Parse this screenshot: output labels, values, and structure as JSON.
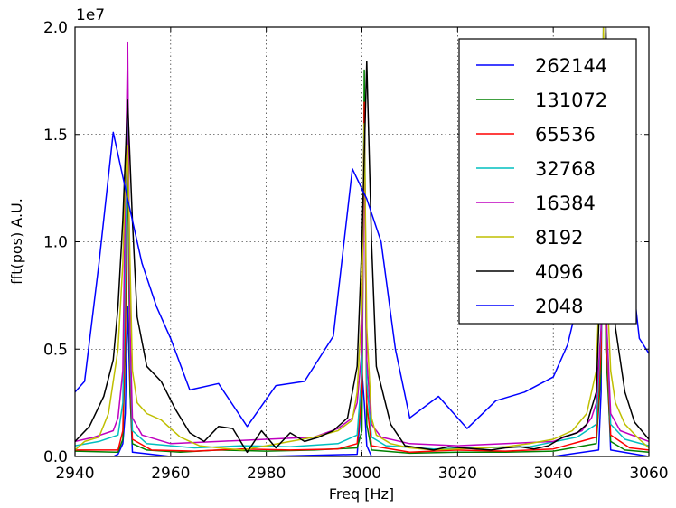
{
  "chart_data": {
    "type": "line",
    "title": "",
    "xlabel": "Freq [Hz]",
    "ylabel": "fft(pos) A.U.",
    "y_offset_label": "1e7",
    "xlim": [
      2940,
      3060
    ],
    "ylim": [
      0,
      20000000
    ],
    "xticks": [
      2940,
      2960,
      2980,
      3000,
      3020,
      3040,
      3060
    ],
    "xtick_labels": [
      "2940",
      "2960",
      "2980",
      "3000",
      "3020",
      "3040",
      "3060"
    ],
    "yticks": [
      0,
      5000000,
      10000000,
      15000000,
      20000000
    ],
    "ytick_labels": [
      "0.0",
      "0.5",
      "1.0",
      "1.5",
      "2.0"
    ],
    "grid": true,
    "legend_position": "top-right",
    "series": [
      {
        "name": "262144",
        "color": "#0000ff",
        "x": [
          2940,
          2948,
          2949,
          2950,
          2950.5,
          2951,
          2951.5,
          2952,
          2960,
          2980,
          2999,
          2999.5,
          3000,
          3000.5,
          3001,
          3002,
          3020,
          3040,
          3049.5,
          3050,
          3050.5,
          3051,
          3052,
          3060
        ],
        "y": [
          0,
          0,
          100000,
          600000,
          2000000,
          7000000,
          3000000,
          200000,
          0,
          0,
          100000,
          1500000,
          4000000,
          2500000,
          500000,
          0,
          0,
          0,
          300000,
          3000000,
          20000000,
          6000000,
          300000,
          0
        ]
      },
      {
        "name": "131072",
        "color": "#008000",
        "x": [
          2940,
          2949,
          2950,
          2950.5,
          2951,
          2951.5,
          2952,
          2955,
          2962,
          2970,
          2980,
          2990,
          2999,
          3000,
          3000.5,
          3001,
          3002,
          3010,
          3020,
          3030,
          3040,
          3049,
          3050,
          3050.5,
          3051,
          3052,
          3055,
          3060
        ],
        "y": [
          250000,
          200000,
          800000,
          5000000,
          14000000,
          3000000,
          600000,
          300000,
          200000,
          300000,
          250000,
          300000,
          400000,
          1200000,
          18000000,
          1500000,
          300000,
          150000,
          200000,
          200000,
          250000,
          600000,
          4000000,
          20000000,
          5000000,
          700000,
          300000,
          200000
        ]
      },
      {
        "name": "65536",
        "color": "#ff0000",
        "x": [
          2940,
          2949,
          2950,
          2950.5,
          2951,
          2951.5,
          2952,
          2956,
          2965,
          2975,
          2985,
          2995,
          2999,
          3000,
          3000.5,
          3001,
          3002,
          3010,
          3020,
          3030,
          3040,
          3049,
          3050,
          3050.5,
          3051,
          3052,
          3056,
          3060
        ],
        "y": [
          300000,
          300000,
          1200000,
          6000000,
          17500000,
          4000000,
          800000,
          300000,
          250000,
          350000,
          300000,
          350000,
          600000,
          3000000,
          16500000,
          2500000,
          500000,
          200000,
          300000,
          250000,
          350000,
          900000,
          5000000,
          19000000,
          6000000,
          1000000,
          400000,
          300000
        ]
      },
      {
        "name": "32768",
        "color": "#00bfbf",
        "x": [
          2940,
          2945,
          2949,
          2950,
          2950.5,
          2951,
          2951.5,
          2952,
          2955,
          2965,
          2975,
          2985,
          2995,
          2999,
          3000,
          3000.5,
          3001,
          3002,
          3005,
          3015,
          3025,
          3035,
          3045,
          3049,
          3050,
          3050.5,
          3051,
          3052,
          3055,
          3060
        ],
        "y": [
          500000,
          700000,
          1000000,
          2500000,
          9000000,
          18000000,
          5000000,
          1200000,
          600000,
          400000,
          500000,
          450000,
          600000,
          1000000,
          4000000,
          15500000,
          3500000,
          900000,
          500000,
          350000,
          400000,
          450000,
          900000,
          1500000,
          6000000,
          18500000,
          7000000,
          1500000,
          800000,
          500000
        ]
      },
      {
        "name": "16384",
        "color": "#bf00bf",
        "x": [
          2940,
          2944,
          2948,
          2949,
          2950,
          2950.5,
          2951,
          2951.5,
          2952,
          2954,
          2960,
          2970,
          2980,
          2990,
          2995,
          2998,
          2999,
          3000,
          3000.5,
          3001,
          3002,
          3004,
          3010,
          3020,
          3030,
          3040,
          3046,
          3048,
          3049,
          3050,
          3050.5,
          3051,
          3052,
          3054,
          3060
        ],
        "y": [
          700000,
          900000,
          1200000,
          1800000,
          4000000,
          12000000,
          19300000,
          6000000,
          1800000,
          1000000,
          600000,
          700000,
          800000,
          900000,
          1300000,
          1800000,
          2500000,
          5000000,
          14000000,
          4500000,
          1500000,
          900000,
          600000,
          500000,
          600000,
          700000,
          1200000,
          1800000,
          2500000,
          6000000,
          17000000,
          7000000,
          2000000,
          1200000,
          700000
        ]
      },
      {
        "name": "8192",
        "color": "#bfbf00",
        "x": [
          2940,
          2942,
          2945,
          2947,
          2949,
          2950,
          2950.5,
          2951,
          2951.5,
          2952,
          2953,
          2955,
          2958,
          2962,
          2966,
          2970,
          2975,
          2980,
          2985,
          2990,
          2995,
          2998,
          2999,
          3000,
          3000.5,
          3001,
          3002,
          3003,
          3006,
          3010,
          3015,
          3020,
          3025,
          3030,
          3035,
          3040,
          3044,
          3047,
          3049,
          3050,
          3050.5,
          3051,
          3052,
          3053,
          3055,
          3058,
          3060
        ],
        "y": [
          300000,
          700000,
          900000,
          2000000,
          5000000,
          9000000,
          13000000,
          14500000,
          9000000,
          4000000,
          2500000,
          2000000,
          1700000,
          900000,
          500000,
          400000,
          300000,
          500000,
          700000,
          900000,
          1200000,
          1700000,
          3000000,
          7000000,
          15500000,
          6000000,
          1800000,
          1000000,
          600000,
          400000,
          300000,
          350000,
          400000,
          450000,
          600000,
          800000,
          1200000,
          2000000,
          4000000,
          10000000,
          20000000,
          9000000,
          4000000,
          2500000,
          1500000,
          800000,
          400000
        ]
      },
      {
        "name": "4096",
        "color": "#000000",
        "x": [
          2940,
          2943,
          2946,
          2948,
          2949,
          2950,
          2951,
          2952,
          2953,
          2955,
          2958,
          2961,
          2964,
          2967,
          2970,
          2973,
          2976,
          2979,
          2982,
          2985,
          2988,
          2991,
          2994,
          2997,
          2999,
          3000,
          3001,
          3002,
          3003,
          3006,
          3009,
          3012,
          3015,
          3018,
          3021,
          3024,
          3027,
          3030,
          3033,
          3036,
          3039,
          3042,
          3045,
          3047,
          3049,
          3050,
          3051,
          3052,
          3053,
          3055,
          3057,
          3060
        ],
        "y": [
          700000,
          1400000,
          2800000,
          4500000,
          7000000,
          11000000,
          16600000,
          11000000,
          6500000,
          4200000,
          3500000,
          2200000,
          1100000,
          700000,
          1400000,
          1300000,
          200000,
          1200000,
          400000,
          1100000,
          700000,
          900000,
          1200000,
          1800000,
          4200000,
          10000000,
          18400000,
          10000000,
          4200000,
          1500000,
          500000,
          400000,
          300000,
          450000,
          400000,
          350000,
          300000,
          400000,
          450000,
          350000,
          500000,
          900000,
          1100000,
          1500000,
          3000000,
          9000000,
          20000000,
          10000000,
          6000000,
          3000000,
          1600000,
          800000
        ]
      },
      {
        "name": "2048",
        "color": "#0000ff",
        "x": [
          2940,
          2942,
          2945,
          2948,
          2951,
          2954,
          2957,
          2960,
          2964,
          2970,
          2976,
          2982,
          2988,
          2994,
          2998,
          3001,
          3004,
          3007,
          3010,
          3016,
          3022,
          3028,
          3034,
          3040,
          3043,
          3046,
          3048,
          3050,
          3052,
          3054,
          3056,
          3058,
          3060
        ],
        "y": [
          3000000,
          3500000,
          9000000,
          15100000,
          12000000,
          9000000,
          7000000,
          5500000,
          3100000,
          3400000,
          1400000,
          3300000,
          3500000,
          5600000,
          13400000,
          12000000,
          10000000,
          5000000,
          1800000,
          2800000,
          1300000,
          2600000,
          3000000,
          3700000,
          5200000,
          8000000,
          9500000,
          11000000,
          13000000,
          12000000,
          9500000,
          5500000,
          4800000
        ]
      }
    ]
  }
}
